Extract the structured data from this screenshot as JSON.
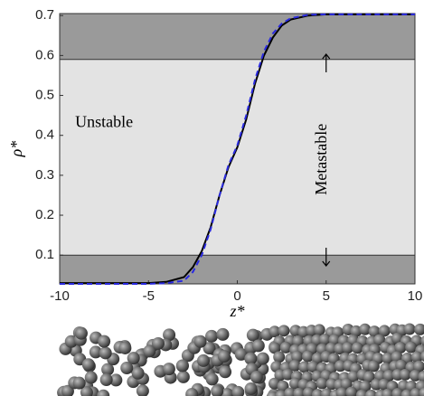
{
  "chart_data": {
    "type": "line",
    "xlabel": "z*",
    "ylabel": "ρ*",
    "x": [
      -10,
      -8,
      -6,
      -5,
      -4,
      -3,
      -2.5,
      -2,
      -1.5,
      -1,
      -0.5,
      0,
      0.5,
      1,
      1.5,
      2,
      2.5,
      3,
      4,
      5,
      6,
      8,
      10
    ],
    "series": [
      {
        "color": "#000000",
        "style": "solid",
        "values": [
          0.03,
          0.03,
          0.03,
          0.03,
          0.033,
          0.045,
          0.07,
          0.11,
          0.17,
          0.25,
          0.32,
          0.37,
          0.44,
          0.53,
          0.6,
          0.645,
          0.675,
          0.69,
          0.7,
          0.703,
          0.703,
          0.703,
          0.703
        ]
      },
      {
        "color": "#2a2ae0",
        "style": "dashed",
        "values": [
          0.028,
          0.028,
          0.028,
          0.028,
          0.03,
          0.036,
          0.058,
          0.1,
          0.165,
          0.25,
          0.325,
          0.375,
          0.45,
          0.54,
          0.61,
          0.655,
          0.68,
          0.693,
          0.702,
          0.703,
          0.703,
          0.703,
          0.703
        ]
      }
    ],
    "stable_limits": [
      0.1,
      0.59
    ],
    "annotations": [
      {
        "text": "Unstable",
        "x": -7.5,
        "y": 0.43
      },
      {
        "text": "Metastable",
        "x": 4.8,
        "y": 0.34
      }
    ],
    "xlim": [
      -10,
      10
    ],
    "ylim": [
      0.028,
      0.705
    ],
    "xticks": [
      -10,
      -5,
      0,
      5,
      10
    ],
    "yticks": [
      0.1,
      0.2,
      0.3,
      0.4,
      0.5,
      0.6,
      0.7
    ]
  }
}
